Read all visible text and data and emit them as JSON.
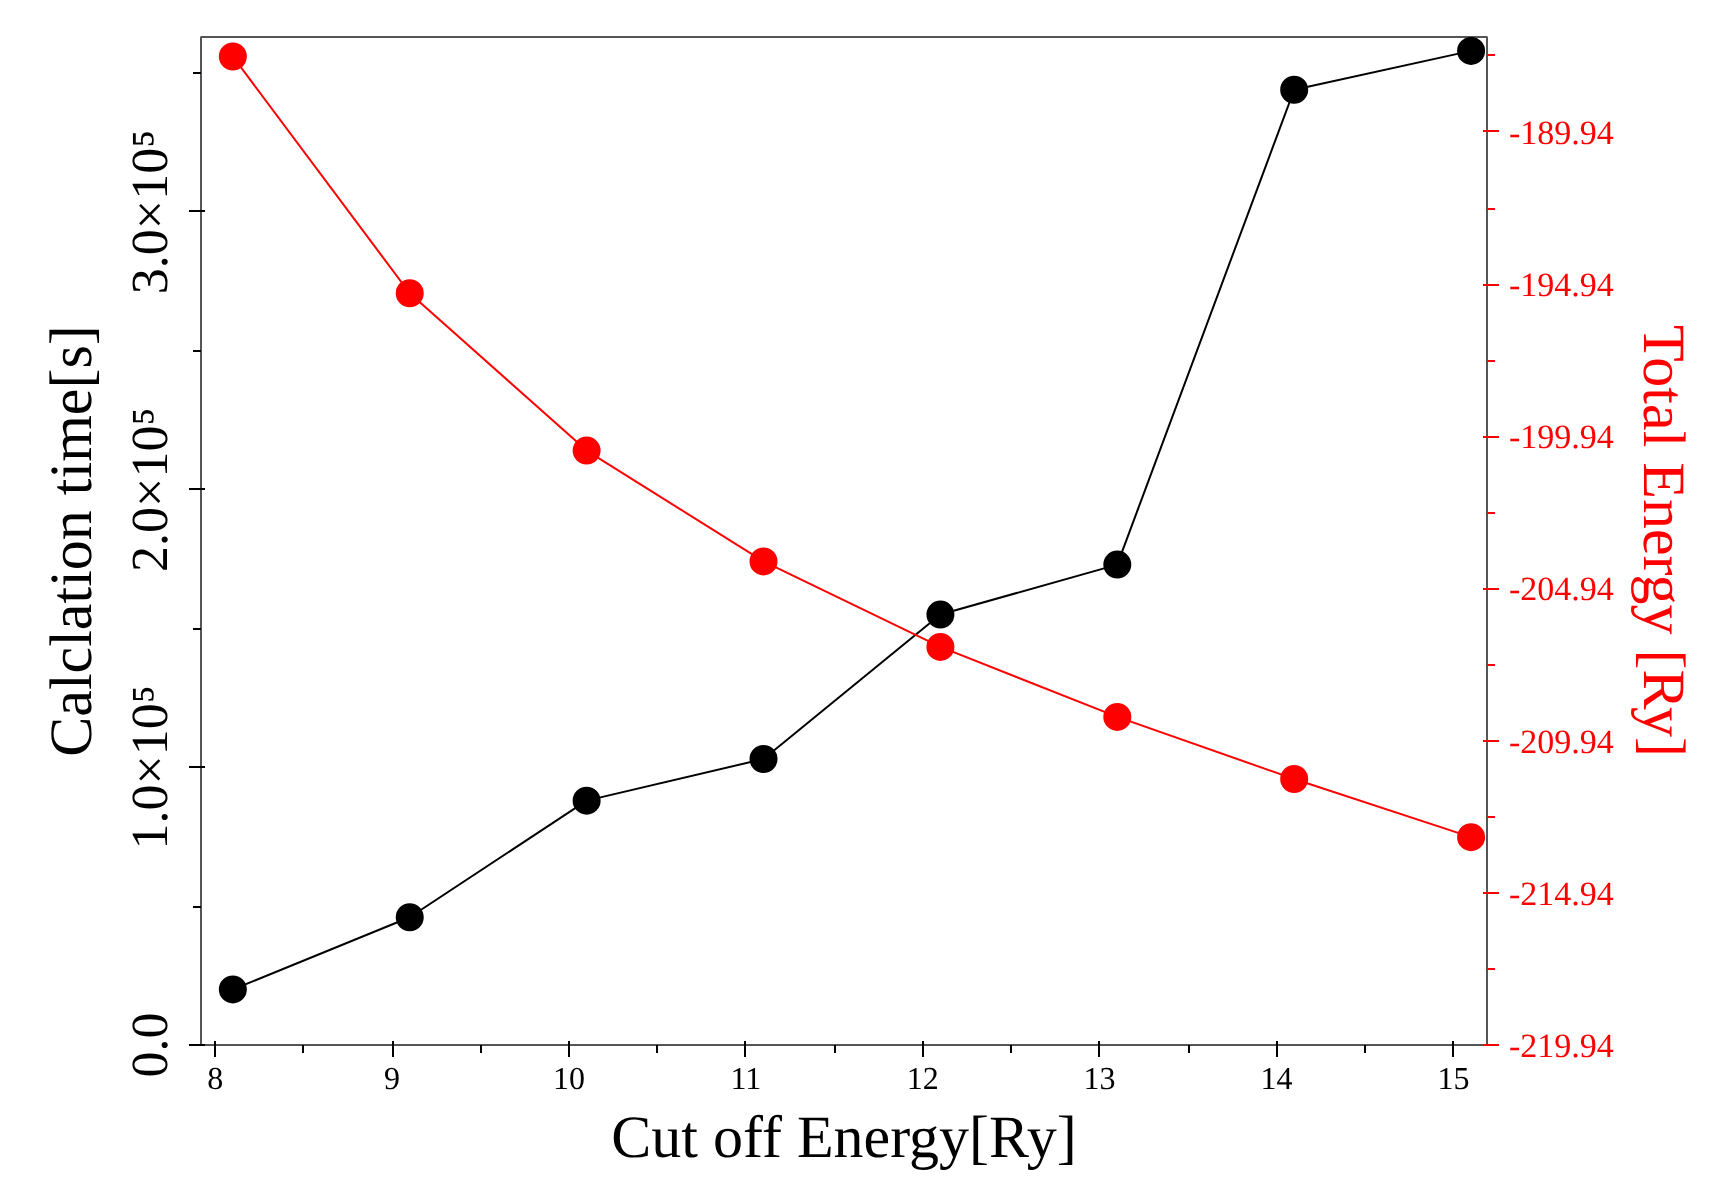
{
  "chart_data": {
    "type": "line",
    "xlabel": "Cut off Energy[Ry]",
    "ylabel": "Calclation time[s]",
    "y2label": "Total Energy [Ry]",
    "x": [
      8.1,
      9.1,
      10.1,
      11.1,
      12.1,
      13.1,
      14.1,
      15.1
    ],
    "series": [
      {
        "color": "#000000",
        "values": [
          20000,
          46000,
          88000,
          103000,
          155000,
          173000,
          344000,
          358000
        ]
      },
      {
        "color": "#ff0000",
        "axis": "y2",
        "values": [
          -187.46,
          -195.24,
          -200.41,
          -204.05,
          -206.86,
          -209.16,
          -211.2,
          -213.11
        ]
      }
    ],
    "xlim": [
      7.92,
      15.19
    ],
    "xticks": [
      8,
      9,
      10,
      11,
      12,
      13,
      14,
      15
    ],
    "ylim": [
      0,
      363000
    ],
    "yticks": [
      {
        "value": 0,
        "label": "0.0"
      },
      {
        "value": 100000,
        "label": "1.0×10⁵"
      },
      {
        "value": 200000,
        "label": "2.0×10⁵"
      },
      {
        "value": 300000,
        "label": "3.0×10⁵"
      }
    ],
    "y2lim": [
      -219.94,
      -186.82
    ],
    "y2ticks": [
      -219.94,
      -214.94,
      -209.94,
      -204.94,
      -199.94,
      -194.94,
      -189.94
    ],
    "marker": "circle",
    "line_style": "solid",
    "grid": false
  }
}
